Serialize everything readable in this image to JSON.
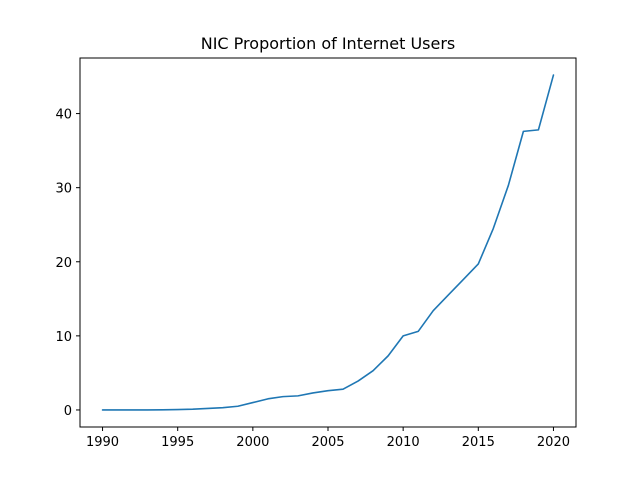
{
  "chart_data": {
    "type": "line",
    "title": "NIC Proportion of Internet Users",
    "xlabel": "",
    "ylabel": "",
    "xlim": [
      1988.5,
      2021.5
    ],
    "ylim": [
      -2.3,
      47.5
    ],
    "xticks": [
      1990,
      1995,
      2000,
      2005,
      2010,
      2015,
      2020
    ],
    "yticks": [
      0,
      10,
      20,
      30,
      40
    ],
    "grid": false,
    "series": [
      {
        "color": "#1f77b4",
        "x": [
          1990,
          1991,
          1992,
          1993,
          1994,
          1995,
          1996,
          1997,
          1998,
          1999,
          2000,
          2001,
          2002,
          2003,
          2004,
          2005,
          2006,
          2007,
          2008,
          2009,
          2010,
          2011,
          2012,
          2013,
          2014,
          2015,
          2016,
          2017,
          2018,
          2019,
          2020
        ],
        "y": [
          0,
          0,
          0,
          0,
          0.02,
          0.05,
          0.1,
          0.2,
          0.3,
          0.5,
          1.0,
          1.5,
          1.8,
          1.9,
          2.3,
          2.6,
          2.8,
          3.9,
          5.3,
          7.3,
          10.0,
          10.6,
          13.4,
          15.5,
          17.6,
          19.7,
          24.5,
          30.3,
          37.6,
          37.8,
          45.2
        ]
      }
    ]
  }
}
